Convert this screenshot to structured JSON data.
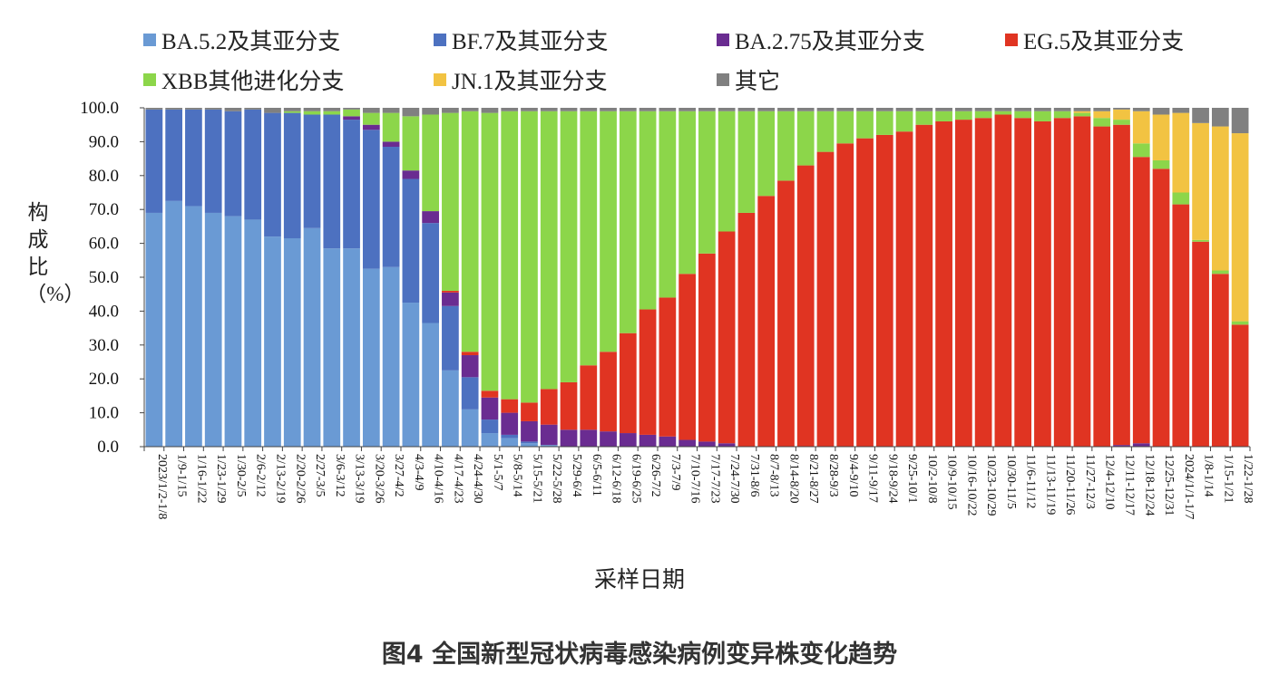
{
  "chart_data": {
    "type": "bar",
    "stacked": true,
    "title": "",
    "xlabel": "采样日期",
    "ylabel": "构成比（%）",
    "ylim": [
      0,
      100
    ],
    "yticks": [
      "0.0",
      "10.0",
      "20.0",
      "30.0",
      "40.0",
      "50.0",
      "60.0",
      "70.0",
      "80.0",
      "90.0",
      "100.0"
    ],
    "legend_position": "top",
    "categories": [
      "2023/1/2-1/8",
      "1/9-1/15",
      "1/16-1/22",
      "1/23-1/29",
      "1/30-2/5",
      "2/6-2/12",
      "2/13-2/19",
      "2/20-2/26",
      "2/27-3/5",
      "3/6-3/12",
      "3/13-3/19",
      "3/20-3/26",
      "3/27-4/2",
      "4/3-4/9",
      "4/10-4/16",
      "4/17-4/23",
      "4/24-4/30",
      "5/1-5/7",
      "5/8-5/14",
      "5/15-5/21",
      "5/22-5/28",
      "5/29-6/4",
      "6/5-6/11",
      "6/12-6/18",
      "6/19-6/25",
      "6/26-7/2",
      "7/3-7/9",
      "7/10-7/16",
      "7/17-7/23",
      "7/24-7/30",
      "7/31-8/6",
      "8/7-8/13",
      "8/14-8/20",
      "8/21-8/27",
      "8/28-9/3",
      "9/4-9/10",
      "9/11-9/17",
      "9/18-9/24",
      "9/25-10/1",
      "10/2-10/8",
      "10/9-10/15",
      "10/16-10/22",
      "10/23-10/29",
      "10/30-11/5",
      "11/6-11/12",
      "11/13-11/19",
      "11/20-11/26",
      "11/27-12/3",
      "12/4-12/10",
      "12/11-12/17",
      "12/18-12/24",
      "12/25-12/31",
      "2024/1/1-1/7",
      "1/8-1/14",
      "1/15-1/21",
      "1/22-1/28"
    ],
    "series": [
      {
        "name": "BA.5.2及其亚分支",
        "color": "#6A9AD4",
        "values": [
          69,
          72.5,
          71,
          69,
          68,
          67,
          62,
          61.5,
          64.5,
          58.5,
          58.5,
          52.5,
          53,
          42.5,
          36.5,
          22.5,
          11,
          4,
          2.5,
          1,
          0.5,
          0,
          0,
          0,
          0,
          0,
          0,
          0,
          0,
          0,
          0,
          0,
          0,
          0,
          0,
          0,
          0,
          0,
          0,
          0,
          0,
          0,
          0,
          0,
          0,
          0,
          0,
          0,
          0,
          0,
          0,
          0,
          0,
          0,
          0,
          0
        ]
      },
      {
        "name": "BF.7及其亚分支",
        "color": "#4D71C0",
        "values": [
          30.5,
          27,
          28.5,
          30.5,
          31,
          32.5,
          36.5,
          37,
          33.5,
          39.5,
          38,
          41,
          35.5,
          36.5,
          29.5,
          19,
          9.5,
          4,
          1,
          0.5,
          0,
          0,
          0,
          0,
          0,
          0,
          0,
          0,
          0,
          0,
          0,
          0,
          0,
          0,
          0,
          0,
          0,
          0,
          0,
          0,
          0,
          0,
          0,
          0,
          0,
          0,
          0,
          0,
          0,
          0,
          0,
          0,
          0,
          0,
          0,
          0
        ]
      },
      {
        "name": "BA.2.75及其亚分支",
        "color": "#6A2C91",
        "values": [
          0,
          0,
          0,
          0,
          0,
          0,
          0,
          0,
          0,
          0,
          1,
          1.5,
          1.5,
          2.5,
          3.5,
          4,
          6.5,
          6.5,
          6.5,
          6,
          6,
          5,
          5,
          4.5,
          4,
          3.5,
          3,
          2,
          1.5,
          1,
          0,
          0,
          0,
          0,
          0,
          0,
          0,
          0,
          0,
          0,
          0,
          0,
          0,
          0,
          0,
          0,
          0,
          0,
          0,
          0.5,
          1,
          0,
          0,
          0,
          0,
          0
        ]
      },
      {
        "name": "EG.5及其亚分支",
        "color": "#E03422",
        "values": [
          0,
          0,
          0,
          0,
          0,
          0,
          0,
          0,
          0,
          0,
          0,
          0,
          0,
          0,
          0,
          0.5,
          1,
          2,
          4,
          5.5,
          10.5,
          14,
          19,
          23.5,
          29.5,
          37,
          41,
          49,
          55.5,
          62.5,
          69,
          74,
          78.5,
          83,
          87,
          89.5,
          91,
          92,
          93,
          95,
          96,
          96.5,
          97,
          98,
          97,
          96,
          97,
          97.5,
          94.5,
          94.5,
          84.5,
          82,
          71.5,
          60.5,
          51,
          36
        ]
      },
      {
        "name": "XBB其他进化分支",
        "color": "#8CD64A",
        "values": [
          0,
          0,
          0,
          0,
          0,
          0,
          0,
          0.5,
          1,
          1,
          2,
          3.5,
          8.5,
          16,
          28.5,
          52.5,
          71,
          82,
          85,
          86,
          82,
          80,
          75,
          71,
          65.5,
          58.5,
          55,
          48,
          42,
          35.5,
          30,
          25,
          20.5,
          16,
          12,
          9.5,
          8,
          7,
          6,
          4,
          3,
          2.5,
          2,
          1,
          2,
          3,
          2,
          1,
          2.5,
          1.5,
          4,
          2.5,
          3.5,
          0.5,
          1,
          1
        ]
      },
      {
        "name": "JN.1及其亚分支",
        "color": "#F2C342",
        "values": [
          0,
          0,
          0,
          0,
          0,
          0,
          0,
          0,
          0,
          0,
          0,
          0,
          0,
          0,
          0,
          0,
          0,
          0,
          0,
          0,
          0,
          0,
          0,
          0,
          0,
          0,
          0,
          0,
          0,
          0,
          0,
          0,
          0,
          0,
          0,
          0,
          0,
          0,
          0,
          0,
          0,
          0,
          0,
          0,
          0,
          0,
          0,
          0.5,
          2,
          3,
          9.5,
          13.5,
          23.5,
          34.5,
          42.5,
          55.5
        ]
      },
      {
        "name": "其它",
        "color": "#808080",
        "values": [
          0.5,
          0.5,
          0.5,
          0.5,
          1,
          0.5,
          1.5,
          1,
          1,
          1,
          0.5,
          1.5,
          1.5,
          2.5,
          2,
          1.5,
          1,
          1.5,
          1,
          1,
          1,
          1,
          1,
          1,
          1,
          1,
          1,
          1,
          1,
          1,
          1,
          1,
          1,
          1,
          1,
          1,
          1,
          1,
          1,
          1,
          1,
          1,
          1,
          1,
          1,
          1,
          1,
          1,
          1,
          0.5,
          1,
          2,
          1.5,
          4.5,
          5.5,
          7.5
        ]
      }
    ]
  },
  "legend_rows": [
    [
      "0",
      "1",
      "2",
      "3"
    ],
    [
      "4",
      "5",
      "6"
    ]
  ],
  "caption": "图4 全国新型冠状病毒感染病例变异株变化趋势"
}
